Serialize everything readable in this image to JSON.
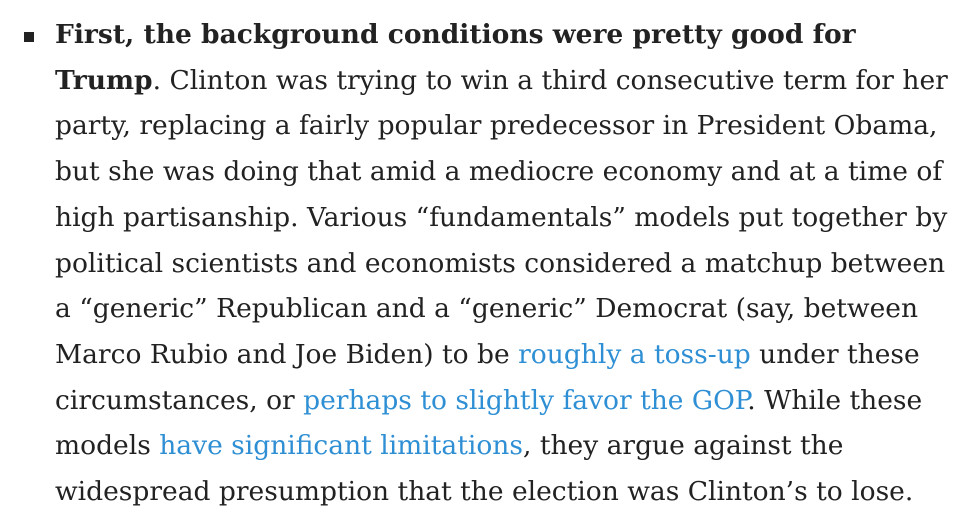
{
  "article": {
    "paragraph": {
      "lead": "First, the background conditions were pretty good for Trump",
      "lead_period": ".",
      "text_1": " Clinton was trying to win a third consecutive term for her party, replacing a fairly popular predecessor in President Obama, but she was doing that amid a mediocre economy and at a time of high partisanship. Various “fundamentals” models put together by political scientists and economists considered a matchup between a “generic” Republican and a “generic” Democrat (say, between Marco Rubio and Joe Biden) to be ",
      "link_1": "roughly a toss-up",
      "text_2": " under these circumstances, or ",
      "link_2": "perhaps to slightly favor the GOP",
      "text_3": ". While these models ",
      "link_3": "have significant limitations",
      "text_4": ", they argue against the widespread presumption that the election was Clinton’s to lose."
    }
  },
  "colors": {
    "text": "#222222",
    "link": "#2f8fd4"
  }
}
